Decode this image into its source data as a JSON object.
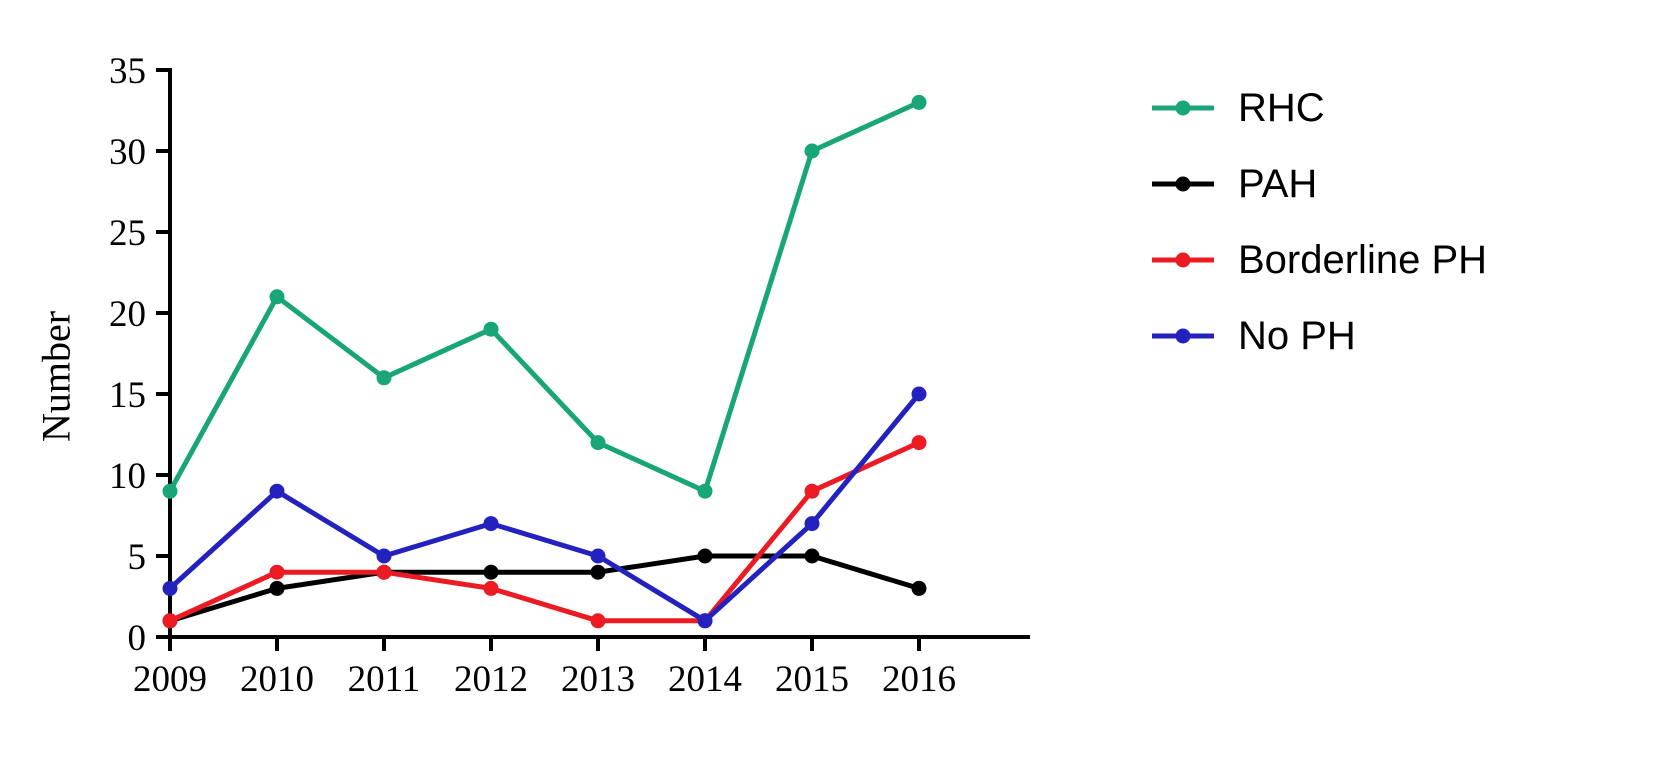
{
  "figure": {
    "background": "#ffffff",
    "axis_color": "#000000"
  },
  "chart_data": {
    "type": "line",
    "title": "",
    "xlabel": "",
    "ylabel": "Number",
    "categories": [
      "2009",
      "2010",
      "2011",
      "2012",
      "2013",
      "2014",
      "2015",
      "2016"
    ],
    "ylim": [
      0,
      35
    ],
    "ytick_step": 5,
    "yticks": [
      0,
      5,
      10,
      15,
      20,
      25,
      30,
      35
    ],
    "grid": false,
    "legend_position": "right",
    "series": [
      {
        "name": "RHC",
        "color": "#18A578",
        "values": [
          9,
          21,
          16,
          19,
          12,
          9,
          30,
          33
        ]
      },
      {
        "name": "PAH",
        "color": "#000000",
        "values": [
          1,
          3,
          4,
          4,
          4,
          5,
          5,
          3
        ]
      },
      {
        "name": "Borderline PH",
        "color": "#EC1B23",
        "values": [
          1,
          4,
          4,
          3,
          1,
          1,
          9,
          12
        ]
      },
      {
        "name": "No PH",
        "color": "#2422BE",
        "values": [
          3,
          9,
          5,
          7,
          5,
          1,
          7,
          15
        ]
      }
    ]
  }
}
